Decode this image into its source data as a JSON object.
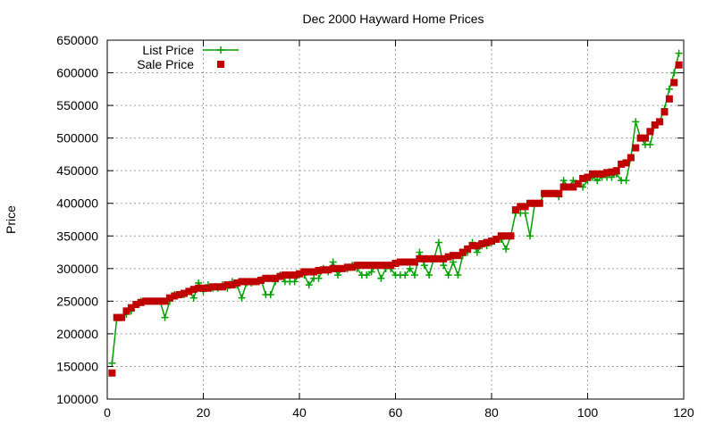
{
  "chart_data": {
    "type": "line",
    "title": "Dec 2000 Hayward Home Prices",
    "xlabel": "",
    "ylabel": "Price",
    "xlim": [
      0,
      120
    ],
    "ylim": [
      100000,
      650000
    ],
    "xticks": [
      0,
      20,
      40,
      60,
      80,
      100,
      120
    ],
    "yticks": [
      100000,
      150000,
      200000,
      250000,
      300000,
      350000,
      400000,
      450000,
      500000,
      550000,
      600000,
      650000
    ],
    "grid": true,
    "legend_position": "top-left",
    "series": [
      {
        "name": "List Price",
        "style": "line+cross",
        "color": "#00a000",
        "x": [
          1,
          2,
          3,
          4,
          5,
          6,
          7,
          8,
          9,
          10,
          11,
          12,
          13,
          14,
          15,
          16,
          17,
          18,
          19,
          20,
          21,
          22,
          23,
          24,
          25,
          26,
          27,
          28,
          29,
          30,
          31,
          32,
          33,
          34,
          35,
          36,
          37,
          38,
          39,
          40,
          41,
          42,
          43,
          44,
          45,
          46,
          47,
          48,
          49,
          50,
          51,
          52,
          53,
          54,
          55,
          56,
          57,
          58,
          59,
          60,
          61,
          62,
          63,
          64,
          65,
          66,
          67,
          68,
          69,
          70,
          71,
          72,
          73,
          74,
          75,
          76,
          77,
          78,
          79,
          80,
          81,
          82,
          83,
          84,
          85,
          86,
          87,
          88,
          89,
          90,
          91,
          92,
          93,
          94,
          95,
          96,
          97,
          98,
          99,
          100,
          101,
          102,
          103,
          104,
          105,
          106,
          107,
          108,
          109,
          110,
          111,
          112,
          113,
          114,
          115,
          116,
          117,
          118,
          119
        ],
        "values": [
          155000,
          225000,
          225000,
          230000,
          235000,
          245000,
          250000,
          250000,
          250000,
          250000,
          250000,
          225000,
          250000,
          260000,
          260000,
          260000,
          265000,
          255000,
          278000,
          265000,
          275000,
          270000,
          270000,
          275000,
          270000,
          280000,
          275000,
          255000,
          278000,
          278000,
          280000,
          283000,
          260000,
          260000,
          280000,
          290000,
          280000,
          280000,
          280000,
          290000,
          290000,
          275000,
          285000,
          285000,
          300000,
          295000,
          310000,
          290000,
          300000,
          300000,
          305000,
          300000,
          290000,
          290000,
          295000,
          305000,
          285000,
          300000,
          300000,
          290000,
          290000,
          290000,
          300000,
          290000,
          325000,
          305000,
          290000,
          315000,
          340000,
          305000,
          290000,
          310000,
          290000,
          320000,
          325000,
          340000,
          325000,
          335000,
          335000,
          340000,
          345000,
          345000,
          330000,
          350000,
          385000,
          385000,
          385000,
          350000,
          400000,
          400000,
          415000,
          415000,
          415000,
          410000,
          435000,
          425000,
          435000,
          430000,
          425000,
          435000,
          440000,
          435000,
          440000,
          440000,
          440000,
          445000,
          435000,
          435000,
          470000,
          525000,
          500000,
          490000,
          490000,
          520000,
          525000,
          545000,
          575000,
          600000,
          630000
        ]
      },
      {
        "name": "Sale Price",
        "style": "square",
        "color": "#c00000",
        "x": [
          1,
          2,
          3,
          4,
          5,
          6,
          7,
          8,
          9,
          10,
          11,
          12,
          13,
          14,
          15,
          16,
          17,
          18,
          19,
          20,
          21,
          22,
          23,
          24,
          25,
          26,
          27,
          28,
          29,
          30,
          31,
          32,
          33,
          34,
          35,
          36,
          37,
          38,
          39,
          40,
          41,
          42,
          43,
          44,
          45,
          46,
          47,
          48,
          49,
          50,
          51,
          52,
          53,
          54,
          55,
          56,
          57,
          58,
          59,
          60,
          61,
          62,
          63,
          64,
          65,
          66,
          67,
          68,
          69,
          70,
          71,
          72,
          73,
          74,
          75,
          76,
          77,
          78,
          79,
          80,
          81,
          82,
          83,
          84,
          85,
          86,
          87,
          88,
          89,
          90,
          91,
          92,
          93,
          94,
          95,
          96,
          97,
          98,
          99,
          100,
          101,
          102,
          103,
          104,
          105,
          106,
          107,
          108,
          109,
          110,
          111,
          112,
          113,
          114,
          115,
          116,
          117,
          118,
          119
        ],
        "values": [
          140000,
          225000,
          225000,
          235000,
          240000,
          245000,
          248000,
          250000,
          250000,
          250000,
          250000,
          250000,
          255000,
          258000,
          260000,
          262000,
          265000,
          268000,
          270000,
          270000,
          270000,
          272000,
          272000,
          272000,
          275000,
          275000,
          278000,
          280000,
          280000,
          280000,
          280000,
          282000,
          285000,
          285000,
          285000,
          288000,
          290000,
          290000,
          290000,
          292000,
          295000,
          295000,
          295000,
          297000,
          298000,
          298000,
          300000,
          300000,
          300000,
          302000,
          302000,
          305000,
          305000,
          305000,
          305000,
          305000,
          305000,
          305000,
          305000,
          308000,
          310000,
          310000,
          310000,
          310000,
          315000,
          315000,
          315000,
          315000,
          315000,
          315000,
          318000,
          320000,
          320000,
          325000,
          330000,
          335000,
          335000,
          338000,
          340000,
          342000,
          345000,
          350000,
          350000,
          350000,
          390000,
          395000,
          395000,
          400000,
          400000,
          400000,
          415000,
          415000,
          415000,
          415000,
          425000,
          425000,
          425000,
          430000,
          438000,
          440000,
          445000,
          445000,
          445000,
          447000,
          448000,
          450000,
          460000,
          462000,
          470000,
          485000,
          500000,
          500000,
          510000,
          520000,
          525000,
          540000,
          560000,
          585000,
          612000
        ]
      }
    ]
  }
}
